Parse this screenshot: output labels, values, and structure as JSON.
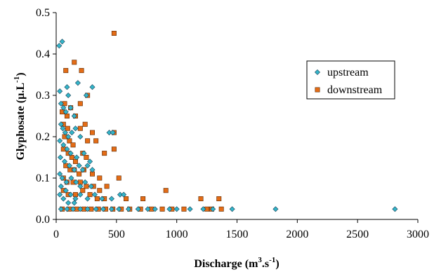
{
  "chart_data": {
    "type": "scatter",
    "xlabel": "Discharge (m³.s⁻¹)",
    "xlabel_parts": {
      "a": "Discharge (m",
      "sup1": "3",
      "b": ".s",
      "sup2": "-1",
      "c": ")"
    },
    "ylabel": "Glyphosate (µ.L⁻¹)",
    "ylabel_parts": {
      "a": "Glyphosate (µ.L",
      "sup": "-1",
      "b": ")"
    },
    "xlim": [
      0,
      3000
    ],
    "ylim": [
      0,
      0.5
    ],
    "xticks": [
      "0",
      "500",
      "1000",
      "1500",
      "2000",
      "2500",
      "3000"
    ],
    "yticks": [
      "0.0",
      "0.1",
      "0.2",
      "0.3",
      "0.4",
      "0.5"
    ],
    "legend_position": "top-right",
    "grid": false,
    "series": [
      {
        "name": "upstream",
        "color": "#33b5c9",
        "marker": "diamond",
        "points": [
          [
            25,
            0.42
          ],
          [
            50,
            0.43
          ],
          [
            30,
            0.31
          ],
          [
            90,
            0.32
          ],
          [
            100,
            0.3
          ],
          [
            180,
            0.33
          ],
          [
            250,
            0.3
          ],
          [
            300,
            0.32
          ],
          [
            40,
            0.28
          ],
          [
            60,
            0.27
          ],
          [
            80,
            0.26
          ],
          [
            120,
            0.27
          ],
          [
            150,
            0.25
          ],
          [
            40,
            0.23
          ],
          [
            55,
            0.22
          ],
          [
            75,
            0.21
          ],
          [
            100,
            0.2
          ],
          [
            130,
            0.21
          ],
          [
            160,
            0.22
          ],
          [
            200,
            0.2
          ],
          [
            30,
            0.19
          ],
          [
            60,
            0.18
          ],
          [
            90,
            0.17
          ],
          [
            120,
            0.16
          ],
          [
            170,
            0.15
          ],
          [
            230,
            0.16
          ],
          [
            280,
            0.14
          ],
          [
            440,
            0.21
          ],
          [
            470,
            0.21
          ],
          [
            35,
            0.15
          ],
          [
            70,
            0.14
          ],
          [
            110,
            0.13
          ],
          [
            150,
            0.12
          ],
          [
            190,
            0.13
          ],
          [
            220,
            0.12
          ],
          [
            260,
            0.13
          ],
          [
            300,
            0.12
          ],
          [
            30,
            0.11
          ],
          [
            50,
            0.1
          ],
          [
            85,
            0.09
          ],
          [
            125,
            0.1
          ],
          [
            165,
            0.09
          ],
          [
            200,
            0.08
          ],
          [
            240,
            0.09
          ],
          [
            290,
            0.08
          ],
          [
            40,
            0.08
          ],
          [
            80,
            0.07
          ],
          [
            120,
            0.06
          ],
          [
            160,
            0.05
          ],
          [
            200,
            0.06
          ],
          [
            260,
            0.05
          ],
          [
            320,
            0.06
          ],
          [
            380,
            0.05
          ],
          [
            460,
            0.05
          ],
          [
            530,
            0.06
          ],
          [
            560,
            0.06
          ],
          [
            30,
            0.06
          ],
          [
            60,
            0.05
          ],
          [
            100,
            0.04
          ],
          [
            150,
            0.04
          ],
          [
            40,
            0.025
          ],
          [
            90,
            0.025
          ],
          [
            140,
            0.025
          ],
          [
            200,
            0.025
          ],
          [
            260,
            0.025
          ],
          [
            330,
            0.025
          ],
          [
            390,
            0.025
          ],
          [
            460,
            0.025
          ],
          [
            520,
            0.025
          ],
          [
            600,
            0.025
          ],
          [
            680,
            0.025
          ],
          [
            760,
            0.025
          ],
          [
            820,
            0.025
          ],
          [
            940,
            0.025
          ],
          [
            1000,
            0.025
          ],
          [
            1110,
            0.025
          ],
          [
            1220,
            0.025
          ],
          [
            1300,
            0.025
          ],
          [
            1460,
            0.025
          ],
          [
            1820,
            0.025
          ],
          [
            2810,
            0.025
          ]
        ]
      },
      {
        "name": "downstream",
        "color": "#e46c16",
        "marker": "square",
        "points": [
          [
            480,
            0.45
          ],
          [
            150,
            0.38
          ],
          [
            80,
            0.36
          ],
          [
            210,
            0.36
          ],
          [
            260,
            0.3
          ],
          [
            200,
            0.28
          ],
          [
            70,
            0.28
          ],
          [
            120,
            0.27
          ],
          [
            50,
            0.26
          ],
          [
            90,
            0.25
          ],
          [
            160,
            0.25
          ],
          [
            240,
            0.23
          ],
          [
            60,
            0.23
          ],
          [
            95,
            0.22
          ],
          [
            200,
            0.22
          ],
          [
            300,
            0.21
          ],
          [
            480,
            0.21
          ],
          [
            70,
            0.2
          ],
          [
            110,
            0.19
          ],
          [
            140,
            0.18
          ],
          [
            260,
            0.19
          ],
          [
            330,
            0.19
          ],
          [
            60,
            0.17
          ],
          [
            100,
            0.16
          ],
          [
            130,
            0.15
          ],
          [
            160,
            0.14
          ],
          [
            220,
            0.16
          ],
          [
            250,
            0.15
          ],
          [
            400,
            0.16
          ],
          [
            480,
            0.17
          ],
          [
            80,
            0.13
          ],
          [
            115,
            0.12
          ],
          [
            150,
            0.12
          ],
          [
            190,
            0.11
          ],
          [
            230,
            0.12
          ],
          [
            300,
            0.11
          ],
          [
            360,
            0.1
          ],
          [
            520,
            0.1
          ],
          [
            60,
            0.1
          ],
          [
            90,
            0.09
          ],
          [
            140,
            0.09
          ],
          [
            200,
            0.09
          ],
          [
            250,
            0.08
          ],
          [
            310,
            0.08
          ],
          [
            360,
            0.07
          ],
          [
            420,
            0.08
          ],
          [
            60,
            0.07
          ],
          [
            100,
            0.06
          ],
          [
            160,
            0.06
          ],
          [
            220,
            0.07
          ],
          [
            280,
            0.06
          ],
          [
            340,
            0.05
          ],
          [
            400,
            0.05
          ],
          [
            580,
            0.05
          ],
          [
            720,
            0.05
          ],
          [
            910,
            0.07
          ],
          [
            1200,
            0.05
          ],
          [
            1350,
            0.05
          ],
          [
            50,
            0.025
          ],
          [
            110,
            0.025
          ],
          [
            170,
            0.025
          ],
          [
            230,
            0.025
          ],
          [
            290,
            0.025
          ],
          [
            350,
            0.025
          ],
          [
            410,
            0.025
          ],
          [
            470,
            0.025
          ],
          [
            540,
            0.025
          ],
          [
            610,
            0.025
          ],
          [
            700,
            0.025
          ],
          [
            790,
            0.025
          ],
          [
            880,
            0.025
          ],
          [
            960,
            0.025
          ],
          [
            1060,
            0.025
          ],
          [
            1250,
            0.025
          ],
          [
            1290,
            0.025
          ],
          [
            1370,
            0.025
          ]
        ]
      }
    ]
  }
}
